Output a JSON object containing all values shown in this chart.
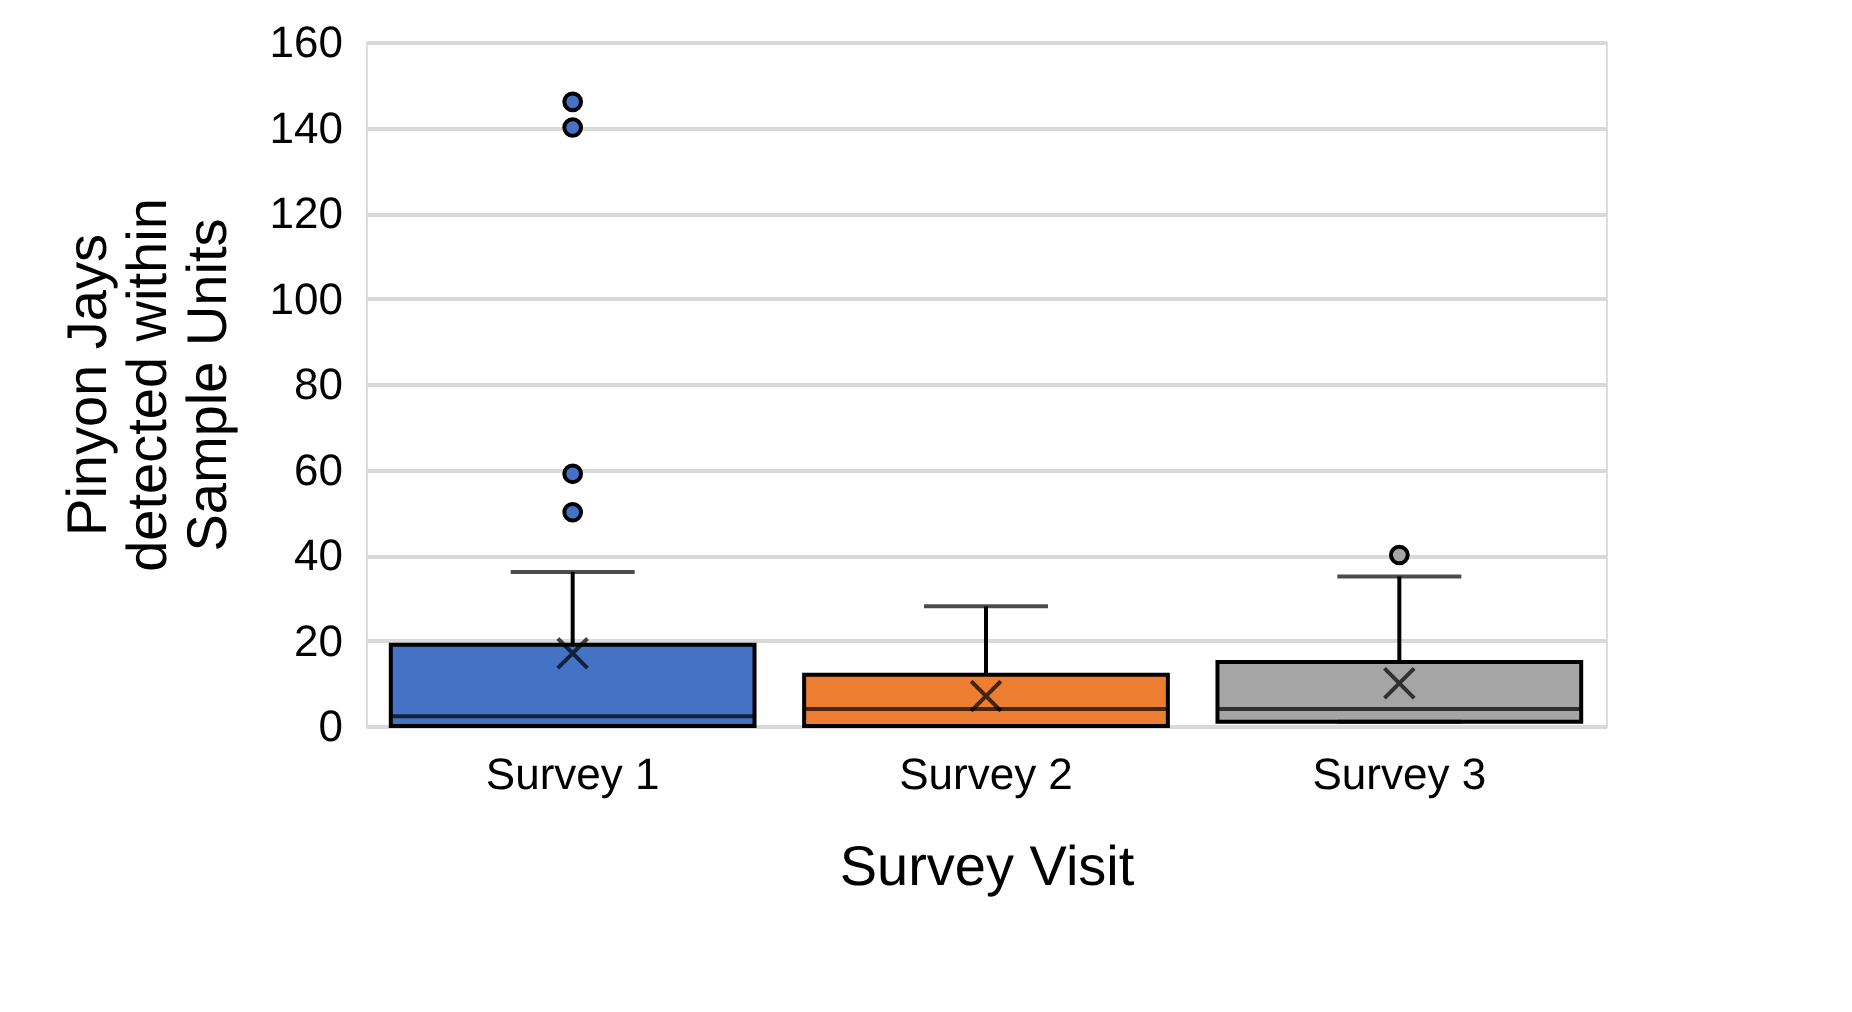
{
  "chart_data": {
    "type": "box",
    "xlabel": "Survey Visit",
    "ylabel": "Pinyon Jays detected within Sample Units",
    "categories": [
      "Survey 1",
      "Survey 2",
      "Survey 3"
    ],
    "colors": [
      "#4472c4",
      "#ed7d31",
      "#a5a5a5"
    ],
    "boxes": [
      {
        "low": 0,
        "q1": 0,
        "median": 2.3,
        "q3": 19,
        "high": 36,
        "mean": 17,
        "outliers": [
          146,
          140,
          59,
          50
        ]
      },
      {
        "low": 0,
        "q1": 0,
        "median": 4,
        "q3": 12,
        "high": 28,
        "mean": 7
      },
      {
        "low": 1,
        "q1": 1,
        "median": 4,
        "q3": 15,
        "high": 35,
        "mean": 10,
        "outliers": [
          40
        ]
      }
    ],
    "ylim": [
      0,
      160
    ],
    "yticks": [
      0,
      20,
      40,
      60,
      80,
      100,
      120,
      140,
      160
    ],
    "grid": "y"
  }
}
